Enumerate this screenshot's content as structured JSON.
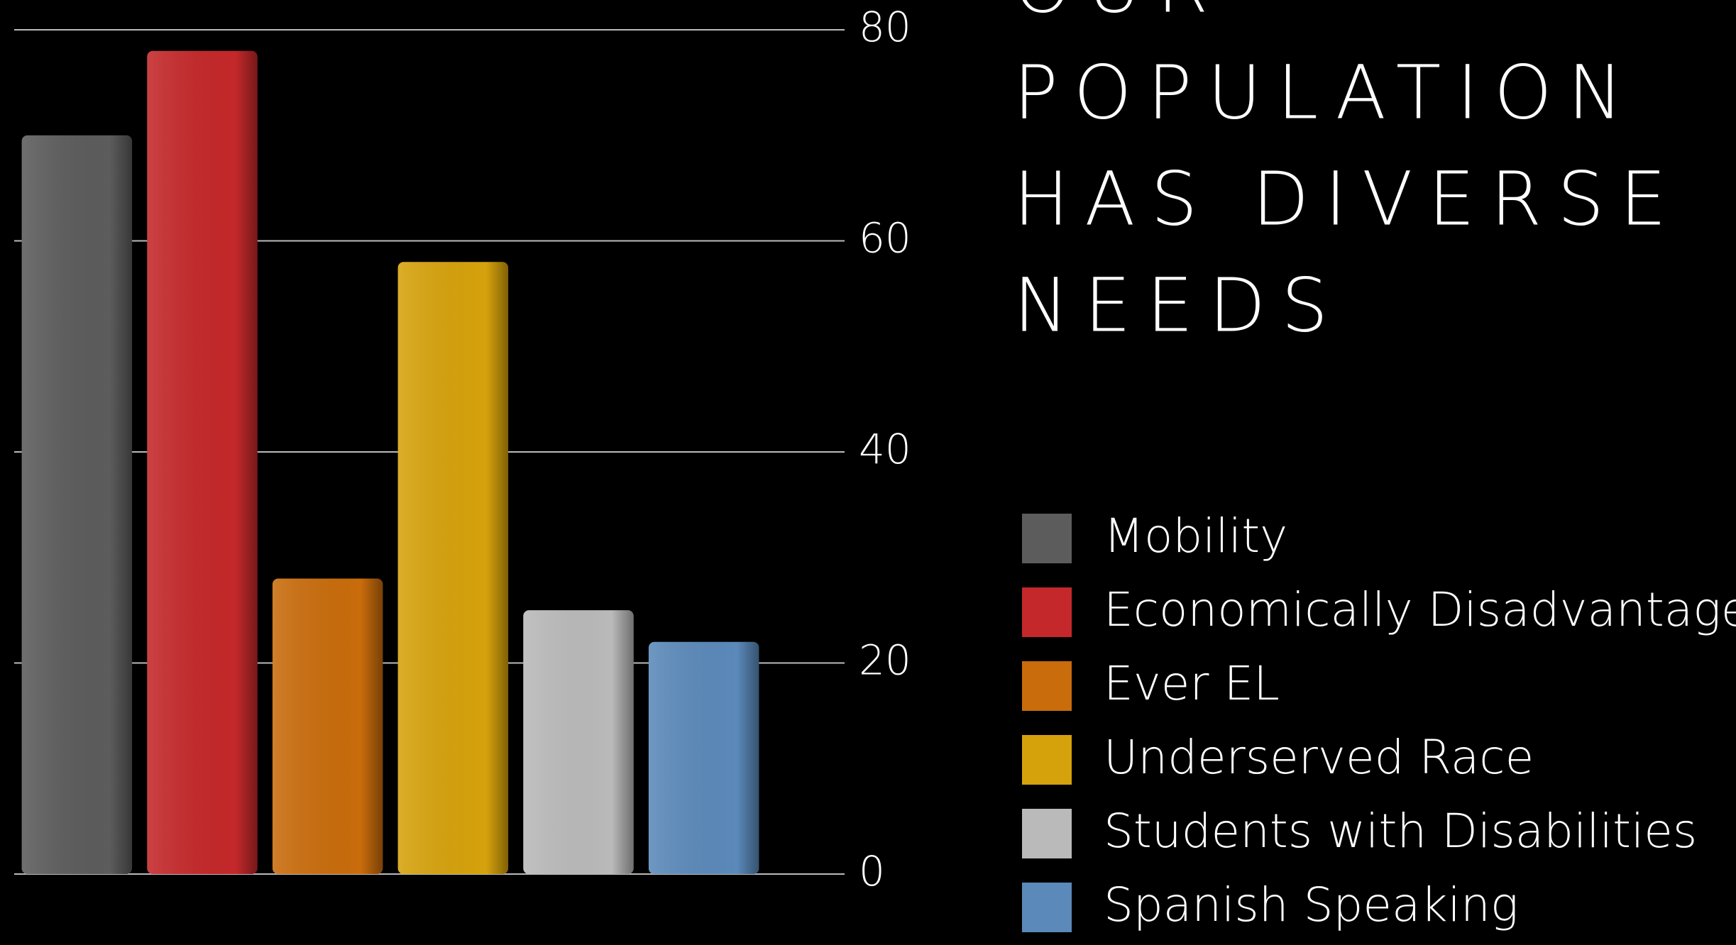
{
  "chart_data": {
    "type": "bar",
    "title_lines": [
      "OUR",
      "POPULATION",
      "HAS DIVERSE",
      "NEEDS"
    ],
    "categories": [
      "Mobility",
      "Economically Disadvantaged",
      "Ever EL",
      "Underserved Race",
      "Students with Disabilities",
      "Spanish Speaking"
    ],
    "values": [
      70,
      78,
      28,
      58,
      25,
      22
    ],
    "colors": [
      "#5c5c5c",
      "#c4282a",
      "#c96c0c",
      "#d6a20c",
      "#bababa",
      "#5b89ba"
    ],
    "ylim": [
      0,
      80
    ],
    "yticks": [
      0,
      20,
      40,
      60,
      80
    ],
    "grid": true,
    "legend": "right"
  }
}
